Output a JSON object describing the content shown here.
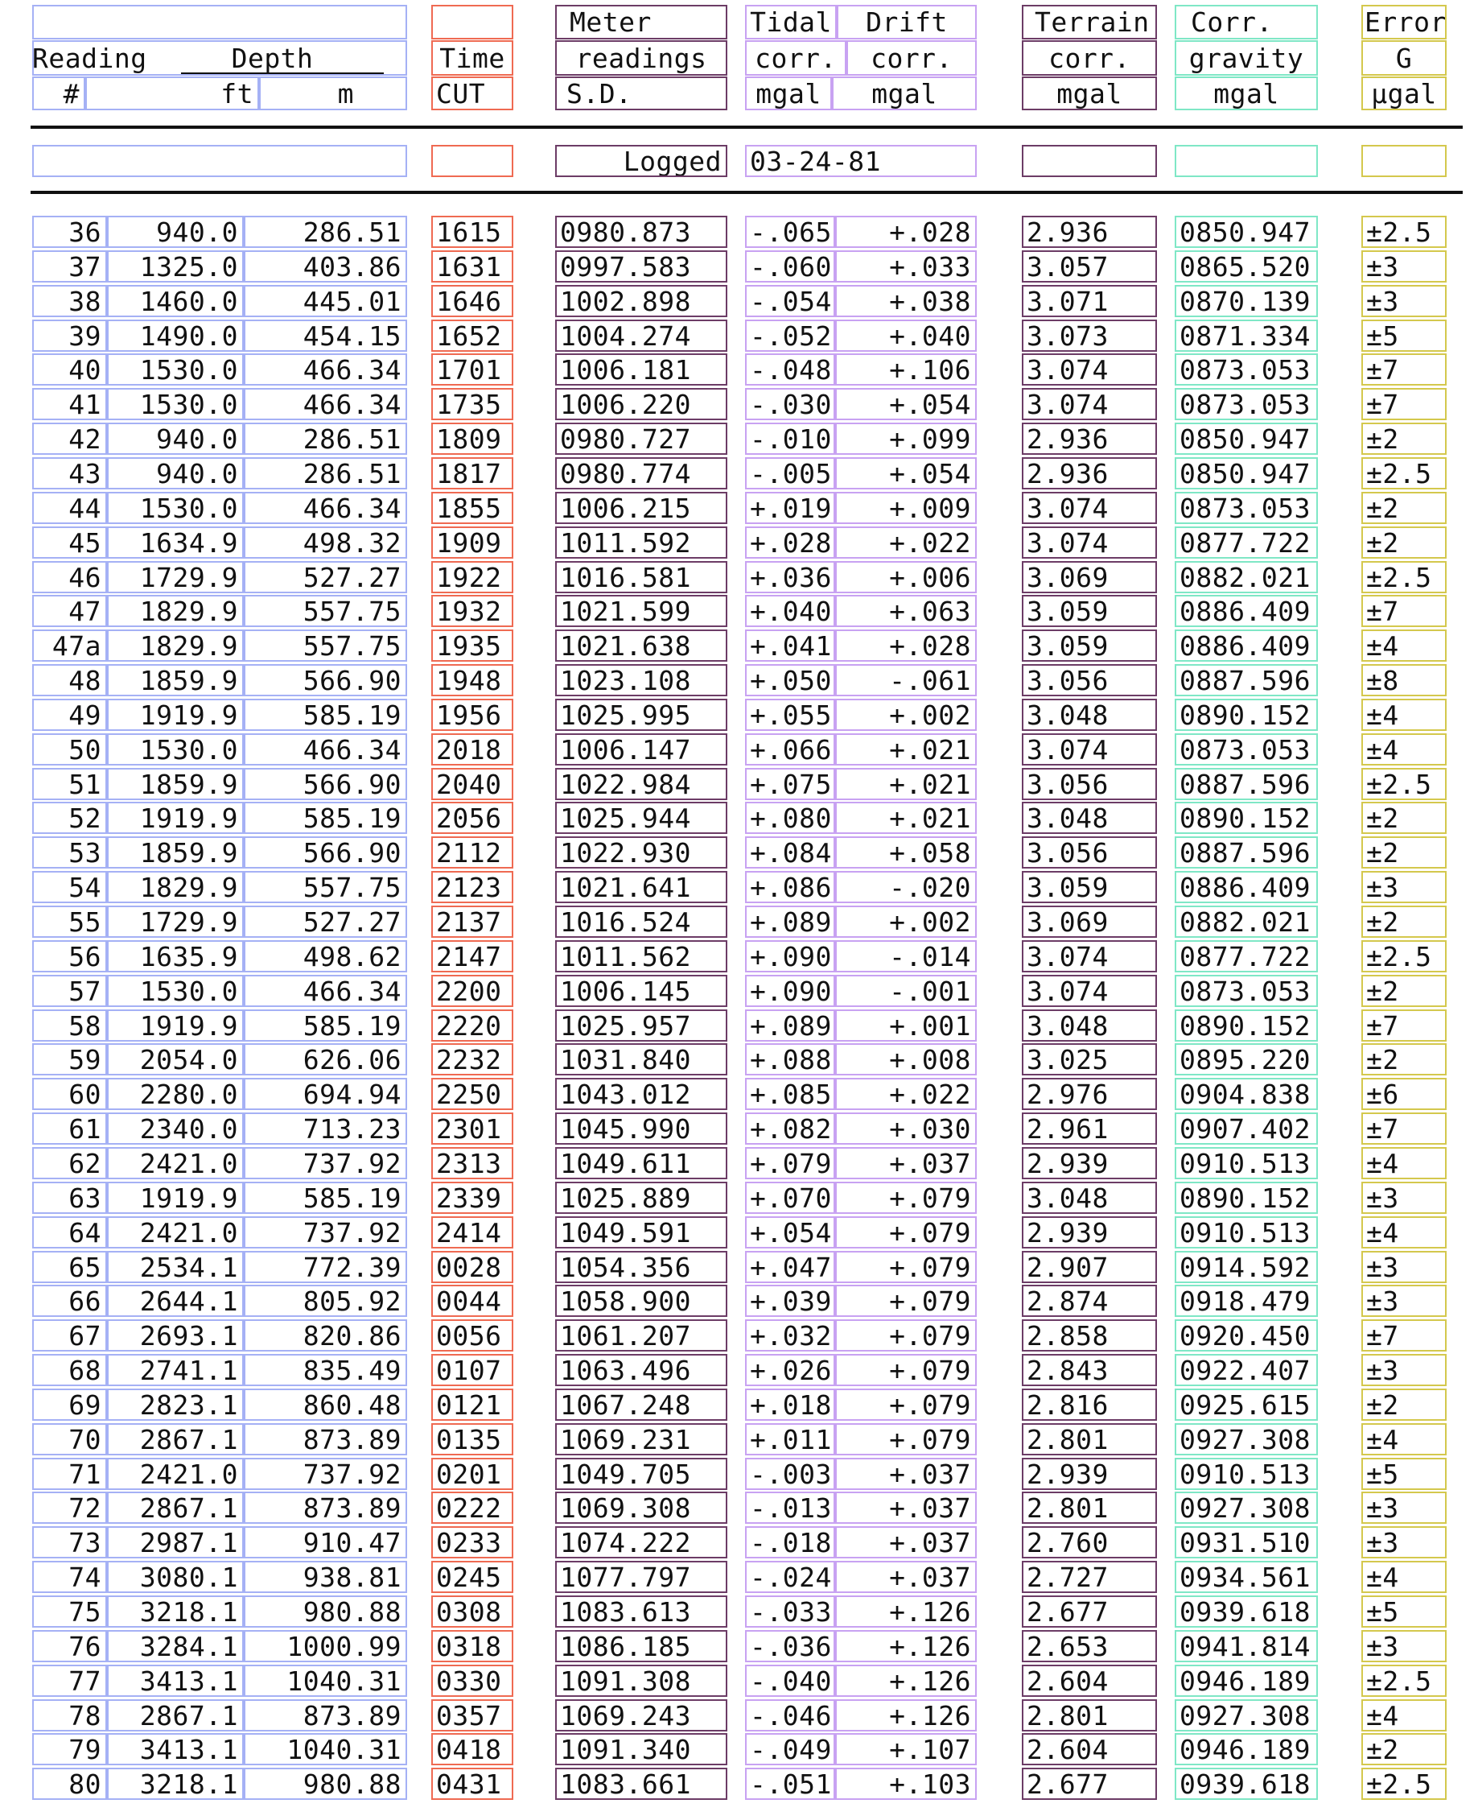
{
  "headers": {
    "reading_l1": "Reading",
    "reading_l2": "#",
    "depth_title": "Depth",
    "depth_ft": "ft",
    "depth_m": "m",
    "time_l1": "Time",
    "time_l2": "CUT",
    "meter_l1": "Meter",
    "meter_l2": "readings",
    "meter_l3": "S.D.",
    "tidal_l1": "Tidal",
    "tidal_l2": "corr.",
    "tidal_l3": "mgal",
    "drift_l1": "Drift",
    "drift_l2": "corr.",
    "drift_l3": "mgal",
    "terrain_l1": "Terrain",
    "terrain_l2": "corr.",
    "terrain_l3": "mgal",
    "gravity_l1": "Corr.",
    "gravity_l2": "gravity",
    "gravity_l3": "mgal",
    "error_l1": "Error",
    "error_l2": "G",
    "error_l3": "μgal"
  },
  "logged": {
    "label": "Logged",
    "date": "03-24-81"
  },
  "rows": [
    [
      "36",
      "940.0",
      "286.51",
      "1615",
      "0980.873",
      "-.065",
      "+.028",
      "2.936",
      "0850.947",
      "±2.5"
    ],
    [
      "37",
      "1325.0",
      "403.86",
      "1631",
      "0997.583",
      "-.060",
      "+.033",
      "3.057",
      "0865.520",
      "±3"
    ],
    [
      "38",
      "1460.0",
      "445.01",
      "1646",
      "1002.898",
      "-.054",
      "+.038",
      "3.071",
      "0870.139",
      "±3"
    ],
    [
      "39",
      "1490.0",
      "454.15",
      "1652",
      "1004.274",
      "-.052",
      "+.040",
      "3.073",
      "0871.334",
      "±5"
    ],
    [
      "40",
      "1530.0",
      "466.34",
      "1701",
      "1006.181",
      "-.048",
      "+.106",
      "3.074",
      "0873.053",
      "±7"
    ],
    [
      "41",
      "1530.0",
      "466.34",
      "1735",
      "1006.220",
      "-.030",
      "+.054",
      "3.074",
      "0873.053",
      "±7"
    ],
    [
      "42",
      "940.0",
      "286.51",
      "1809",
      "0980.727",
      "-.010",
      "+.099",
      "2.936",
      "0850.947",
      "±2"
    ],
    [
      "43",
      "940.0",
      "286.51",
      "1817",
      "0980.774",
      "-.005",
      "+.054",
      "2.936",
      "0850.947",
      "±2.5"
    ],
    [
      "44",
      "1530.0",
      "466.34",
      "1855",
      "1006.215",
      "+.019",
      "+.009",
      "3.074",
      "0873.053",
      "±2"
    ],
    [
      "45",
      "1634.9",
      "498.32",
      "1909",
      "1011.592",
      "+.028",
      "+.022",
      "3.074",
      "0877.722",
      "±2"
    ],
    [
      "46",
      "1729.9",
      "527.27",
      "1922",
      "1016.581",
      "+.036",
      "+.006",
      "3.069",
      "0882.021",
      "±2.5"
    ],
    [
      "47",
      "1829.9",
      "557.75",
      "1932",
      "1021.599",
      "+.040",
      "+.063",
      "3.059",
      "0886.409",
      "±7"
    ],
    [
      "47a",
      "1829.9",
      "557.75",
      "1935",
      "1021.638",
      "+.041",
      "+.028",
      "3.059",
      "0886.409",
      "±4"
    ],
    [
      "48",
      "1859.9",
      "566.90",
      "1948",
      "1023.108",
      "+.050",
      "-.061",
      "3.056",
      "0887.596",
      "±8"
    ],
    [
      "49",
      "1919.9",
      "585.19",
      "1956",
      "1025.995",
      "+.055",
      "+.002",
      "3.048",
      "0890.152",
      "±4"
    ],
    [
      "50",
      "1530.0",
      "466.34",
      "2018",
      "1006.147",
      "+.066",
      "+.021",
      "3.074",
      "0873.053",
      "±4"
    ],
    [
      "51",
      "1859.9",
      "566.90",
      "2040",
      "1022.984",
      "+.075",
      "+.021",
      "3.056",
      "0887.596",
      "±2.5"
    ],
    [
      "52",
      "1919.9",
      "585.19",
      "2056",
      "1025.944",
      "+.080",
      "+.021",
      "3.048",
      "0890.152",
      "±2"
    ],
    [
      "53",
      "1859.9",
      "566.90",
      "2112",
      "1022.930",
      "+.084",
      "+.058",
      "3.056",
      "0887.596",
      "±2"
    ],
    [
      "54",
      "1829.9",
      "557.75",
      "2123",
      "1021.641",
      "+.086",
      "-.020",
      "3.059",
      "0886.409",
      "±3"
    ],
    [
      "55",
      "1729.9",
      "527.27",
      "2137",
      "1016.524",
      "+.089",
      "+.002",
      "3.069",
      "0882.021",
      "±2"
    ],
    [
      "56",
      "1635.9",
      "498.62",
      "2147",
      "1011.562",
      "+.090",
      "-.014",
      "3.074",
      "0877.722",
      "±2.5"
    ],
    [
      "57",
      "1530.0",
      "466.34",
      "2200",
      "1006.145",
      "+.090",
      "-.001",
      "3.074",
      "0873.053",
      "±2"
    ],
    [
      "58",
      "1919.9",
      "585.19",
      "2220",
      "1025.957",
      "+.089",
      "+.001",
      "3.048",
      "0890.152",
      "±7"
    ],
    [
      "59",
      "2054.0",
      "626.06",
      "2232",
      "1031.840",
      "+.088",
      "+.008",
      "3.025",
      "0895.220",
      "±2"
    ],
    [
      "60",
      "2280.0",
      "694.94",
      "2250",
      "1043.012",
      "+.085",
      "+.022",
      "2.976",
      "0904.838",
      "±6"
    ],
    [
      "61",
      "2340.0",
      "713.23",
      "2301",
      "1045.990",
      "+.082",
      "+.030",
      "2.961",
      "0907.402",
      "±7"
    ],
    [
      "62",
      "2421.0",
      "737.92",
      "2313",
      "1049.611",
      "+.079",
      "+.037",
      "2.939",
      "0910.513",
      "±4"
    ],
    [
      "63",
      "1919.9",
      "585.19",
      "2339",
      "1025.889",
      "+.070",
      "+.079",
      "3.048",
      "0890.152",
      "±3"
    ],
    [
      "64",
      "2421.0",
      "737.92",
      "2414",
      "1049.591",
      "+.054",
      "+.079",
      "2.939",
      "0910.513",
      "±4"
    ],
    [
      "65",
      "2534.1",
      "772.39",
      "0028",
      "1054.356",
      "+.047",
      "+.079",
      "2.907",
      "0914.592",
      "±3"
    ],
    [
      "66",
      "2644.1",
      "805.92",
      "0044",
      "1058.900",
      "+.039",
      "+.079",
      "2.874",
      "0918.479",
      "±3"
    ],
    [
      "67",
      "2693.1",
      "820.86",
      "0056",
      "1061.207",
      "+.032",
      "+.079",
      "2.858",
      "0920.450",
      "±7"
    ],
    [
      "68",
      "2741.1",
      "835.49",
      "0107",
      "1063.496",
      "+.026",
      "+.079",
      "2.843",
      "0922.407",
      "±3"
    ],
    [
      "69",
      "2823.1",
      "860.48",
      "0121",
      "1067.248",
      "+.018",
      "+.079",
      "2.816",
      "0925.615",
      "±2"
    ],
    [
      "70",
      "2867.1",
      "873.89",
      "0135",
      "1069.231",
      "+.011",
      "+.079",
      "2.801",
      "0927.308",
      "±4"
    ],
    [
      "71",
      "2421.0",
      "737.92",
      "0201",
      "1049.705",
      "-.003",
      "+.037",
      "2.939",
      "0910.513",
      "±5"
    ],
    [
      "72",
      "2867.1",
      "873.89",
      "0222",
      "1069.308",
      "-.013",
      "+.037",
      "2.801",
      "0927.308",
      "±3"
    ],
    [
      "73",
      "2987.1",
      "910.47",
      "0233",
      "1074.222",
      "-.018",
      "+.037",
      "2.760",
      "0931.510",
      "±3"
    ],
    [
      "74",
      "3080.1",
      "938.81",
      "0245",
      "1077.797",
      "-.024",
      "+.037",
      "2.727",
      "0934.561",
      "±4"
    ],
    [
      "75",
      "3218.1",
      "980.88",
      "0308",
      "1083.613",
      "-.033",
      "+.126",
      "2.677",
      "0939.618",
      "±5"
    ],
    [
      "76",
      "3284.1",
      "1000.99",
      "0318",
      "1086.185",
      "-.036",
      "+.126",
      "2.653",
      "0941.814",
      "±3"
    ],
    [
      "77",
      "3413.1",
      "1040.31",
      "0330",
      "1091.308",
      "-.040",
      "+.126",
      "2.604",
      "0946.189",
      "±2.5"
    ],
    [
      "78",
      "2867.1",
      "873.89",
      "0357",
      "1069.243",
      "-.046",
      "+.126",
      "2.801",
      "0927.308",
      "±4"
    ],
    [
      "79",
      "3413.1",
      "1040.31",
      "0418",
      "1091.340",
      "-.049",
      "+.107",
      "2.604",
      "0946.189",
      "±2"
    ],
    [
      "80",
      "3218.1",
      "980.88",
      "0431",
      "1083.661",
      "-.051",
      "+.103",
      "2.677",
      "0939.618",
      "±2.5"
    ]
  ]
}
